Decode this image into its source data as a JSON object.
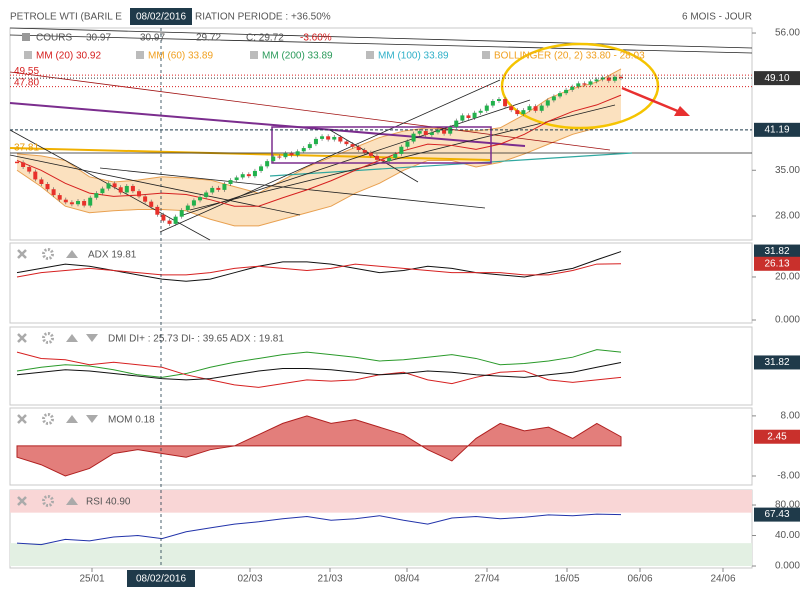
{
  "header": {
    "title_left": "PETROLE WTI (BARIL E",
    "crosshair_date": "08/02/2016",
    "title_right": "RIATION PERIODE : +36.50%",
    "period": "6 MOIS - JOUR",
    "legend_row1": [
      "COURS",
      "30.97",
      "30.97",
      "29.72",
      "C: 29.72",
      "-3.60%"
    ],
    "legend_row2": [
      {
        "text": "MM (20) 30.92",
        "color": "#d62020"
      },
      {
        "text": "MM (60) 33.89",
        "color": "#f0a020"
      },
      {
        "text": "MM (200) 33.89",
        "color": "#2a9a5a"
      },
      {
        "text": "MM (100) 33.89",
        "color": "#30b0c8"
      },
      {
        "text": "BOLLINGER (20, 2) 33.80 - 28.03",
        "color": "#f0a020"
      }
    ]
  },
  "x_axis_labels": [
    "25/01",
    "02/03",
    "21/03",
    "08/04",
    "27/04",
    "16/05",
    "06/06",
    "24/06"
  ],
  "chart_data": [
    {
      "type": "candlestick",
      "ylim": [
        24.33,
        56.77
      ],
      "yticks": [
        {
          "value": 56,
          "label": "56.00"
        },
        {
          "value": 35,
          "label": "35.00"
        },
        {
          "value": 28,
          "label": "28.00"
        }
      ],
      "closes": [
        36.2,
        35.5,
        34.8,
        33.6,
        32.9,
        32.1,
        31.2,
        30.5,
        30.1,
        29.8,
        30.3,
        29.6,
        30.8,
        31.5,
        32.2,
        33.0,
        32.4,
        31.6,
        32.6,
        31.8,
        31.0,
        30.2,
        29.4,
        28.2,
        27.3,
        26.8,
        27.9,
        28.9,
        29.6,
        30.4,
        30.9,
        31.6,
        32.3,
        32.0,
        32.9,
        33.5,
        33.9,
        34.4,
        34.1,
        34.9,
        35.6,
        36.4,
        37.1,
        37.0,
        37.6,
        37.3,
        37.9,
        38.4,
        39.0,
        39.8,
        40.2,
        39.7,
        40.1,
        39.4,
        39.0,
        38.6,
        38.1,
        37.7,
        37.2,
        36.6,
        36.4,
        36.9,
        37.5,
        38.6,
        39.4,
        40.6,
        41.0,
        40.4,
        40.8,
        41.2,
        40.6,
        41.6,
        42.6,
        43.4,
        43.0,
        43.8,
        44.1,
        44.9,
        45.6,
        45.9,
        44.8,
        44.2,
        43.6,
        44.2,
        44.8,
        44.1,
        44.9,
        45.7,
        46.3,
        46.8,
        47.3,
        47.8,
        48.3,
        48.1,
        48.6,
        48.9,
        49.2,
        48.7,
        49.3,
        49.1
      ],
      "up_color": "#22b14c",
      "down_color": "#e8302a",
      "band": {
        "color": "#f7c98a",
        "upper": [
          37.5,
          37.2,
          36.5,
          34,
          33.2,
          33.5,
          34,
          33.8,
          33.5,
          32.5,
          31.5,
          33.5,
          35.5,
          37,
          38.5,
          40,
          41,
          41.5,
          41.2,
          41,
          41.5,
          43.5,
          46,
          47.5,
          48.5,
          50.5
        ],
        "lower": [
          35,
          32.5,
          29.5,
          28.5,
          28.8,
          29,
          29,
          28.8,
          27.5,
          26.5,
          26.5,
          27.5,
          28.5,
          29.5,
          31.5,
          33,
          35,
          36.5,
          36.5,
          35.5,
          36.2,
          37.5,
          39,
          40.5,
          41.5,
          42.5
        ]
      },
      "series": [
        {
          "name": "MM (20)",
          "color": "#d62020",
          "values": [
            36.5,
            35,
            33,
            31.5,
            31,
            31.2,
            31.5,
            31.3,
            30.5,
            29.5,
            29.5,
            30.8,
            32,
            33.4,
            35,
            36.5,
            38,
            39,
            38.8,
            38.2,
            39,
            40.5,
            42.5,
            44,
            45,
            46.5
          ]
        }
      ],
      "levels": [
        {
          "value": 49.55,
          "label": "49.55",
          "color": "#d62020",
          "style": "dotted",
          "side": "left"
        },
        {
          "value": 47.8,
          "label": "47.80",
          "color": "#d62020",
          "style": "dotted",
          "side": "left"
        },
        {
          "value": 37.81,
          "label": "37.81",
          "color": "#e89a00",
          "style": "none",
          "side": "left"
        },
        {
          "value": 49.1,
          "label": "49.10",
          "color": "#333333",
          "style": "dotted",
          "side": "right"
        },
        {
          "value": 41.19,
          "label": "41.19",
          "color": "#1f3a4a",
          "style": "dashed",
          "side": "right"
        }
      ]
    },
    {
      "type": "line",
      "label": "ADX 19.81",
      "ylim": [
        -1.4,
        35.8
      ],
      "yticks": [
        {
          "value": 20,
          "label": "20.00"
        },
        {
          "value": 0,
          "label": "0.000"
        }
      ],
      "series": [
        {
          "color": "#111111",
          "values": [
            22,
            24,
            26,
            25,
            23,
            21,
            19,
            18,
            19,
            22,
            25,
            27,
            27,
            26,
            24,
            22,
            23,
            25,
            24,
            22,
            21,
            20,
            22,
            24,
            28,
            31.82
          ]
        },
        {
          "color": "#d62020",
          "values": [
            20,
            22,
            23,
            24,
            23,
            22,
            21,
            21,
            22,
            24,
            25,
            24,
            23,
            24,
            26,
            25,
            24,
            23,
            22,
            22,
            22,
            21,
            21,
            23,
            26,
            26.13
          ]
        }
      ],
      "markers": [
        {
          "value": 31.82,
          "label": "31.82",
          "color": "#1f3a4a"
        },
        {
          "value": 26.13,
          "label": "26.13",
          "color": "#c9302c"
        }
      ]
    },
    {
      "type": "line",
      "label": "DMI DI+ : 25.73 DI- : 39.65 ADX : 19.81",
      "ylim": [
        -2,
        60
      ],
      "yticks": [],
      "series": [
        {
          "color": "#2a9a2a",
          "values": [
            25,
            28,
            30,
            29,
            26,
            22,
            20,
            23,
            28,
            32,
            35,
            38,
            40,
            38,
            36,
            33,
            34,
            36,
            38,
            35,
            30,
            31,
            33,
            36,
            42,
            40
          ]
        },
        {
          "color": "#d62020",
          "values": [
            40,
            35,
            34,
            30,
            32,
            30,
            28,
            22,
            18,
            14,
            12,
            15,
            18,
            17,
            18,
            22,
            24,
            18,
            15,
            20,
            24,
            25,
            18,
            16,
            18,
            20
          ]
        },
        {
          "color": "#111111",
          "values": [
            22,
            24,
            26,
            25,
            23,
            21,
            19,
            18,
            19,
            22,
            25,
            27,
            27,
            26,
            24,
            22,
            23,
            25,
            24,
            22,
            21,
            20,
            22,
            24,
            28,
            31.82
          ]
        }
      ],
      "markers": [
        {
          "value": 31.82,
          "label": "31.82",
          "color": "#1f3a4a"
        }
      ]
    },
    {
      "type": "area",
      "label": "MOM 0.18",
      "ylim": [
        -10.4,
        10.1
      ],
      "yticks": [
        {
          "value": 8,
          "label": "8.00"
        },
        {
          "value": -8,
          "label": "-8.00"
        }
      ],
      "series": [
        {
          "color": "#d9534f",
          "values": [
            -3,
            -5,
            -8,
            -6,
            -2,
            -1,
            -2,
            -3,
            -1,
            0,
            3,
            6,
            8,
            6,
            7,
            5,
            3,
            -1,
            -4,
            2,
            6,
            4,
            5,
            2,
            6,
            2.45
          ]
        }
      ],
      "markers": [
        {
          "value": 2.45,
          "label": "2.45",
          "color": "#c9302c"
        }
      ]
    },
    {
      "type": "line",
      "label": "RSI 40.90",
      "ylim": [
        -2.6,
        99.7
      ],
      "yticks": [
        {
          "value": 80,
          "label": "80.00"
        },
        {
          "value": 40,
          "label": "40.00"
        },
        {
          "value": 0,
          "label": "0.000"
        }
      ],
      "zones": [
        {
          "from": 70,
          "to": 100,
          "color": "#f9d6d6"
        },
        {
          "from": 0,
          "to": 30,
          "color": "#e3f0e3"
        }
      ],
      "series": [
        {
          "color": "#2233aa",
          "values": [
            30,
            28,
            35,
            33,
            38,
            40,
            36,
            45,
            50,
            55,
            58,
            62,
            65,
            60,
            62,
            66,
            60,
            55,
            63,
            65,
            62,
            64,
            67,
            66,
            68,
            67.43
          ]
        }
      ],
      "markers": [
        {
          "value": 67.43,
          "label": "67.43",
          "color": "#1f3a4a"
        }
      ]
    }
  ]
}
